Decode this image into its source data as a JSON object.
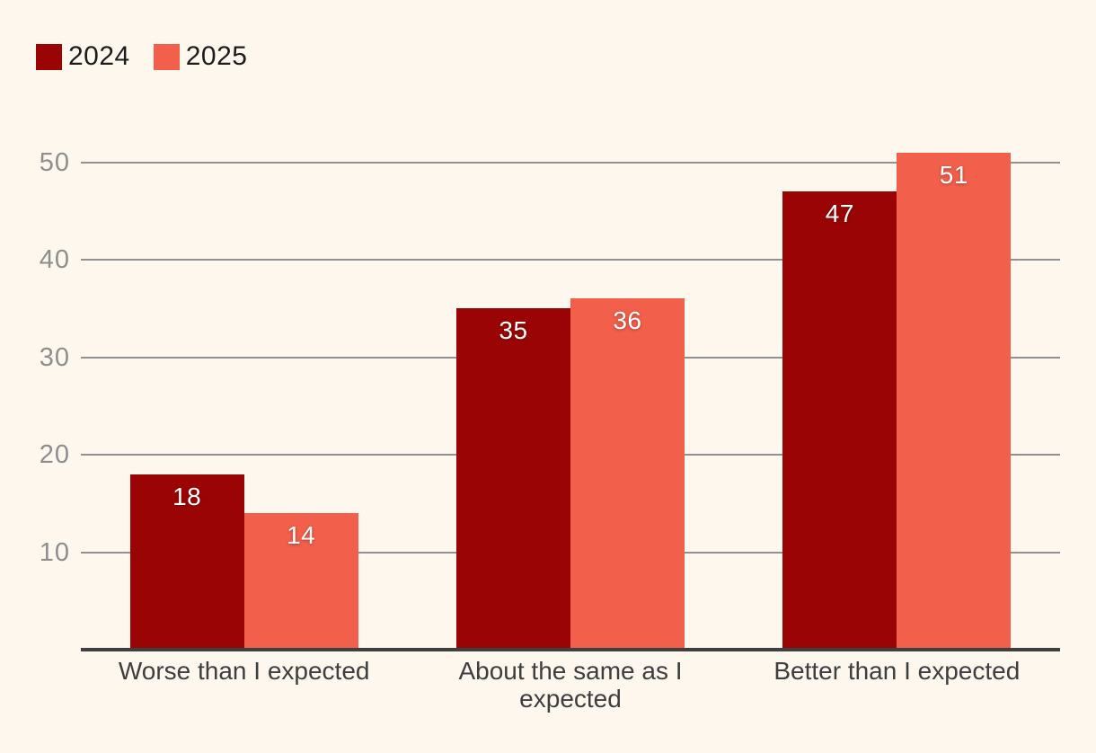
{
  "colors": {
    "background": "#FDF7EE",
    "gridline": "#919191",
    "axis": "#3F3F3F",
    "tick_label": "#8E8E8E",
    "category_label": "#3E3E3E",
    "value_label": "#FFFFFF",
    "legend_text": "#1C1C1C",
    "series_2024": "#9B0404",
    "series_2025": "#F25F4A"
  },
  "legend": {
    "items": [
      {
        "label": "2024",
        "color": "#9B0404"
      },
      {
        "label": "2025",
        "color": "#F25F4A"
      }
    ]
  },
  "chart_data": {
    "type": "bar",
    "categories": [
      "Worse than I expected",
      "About the same as I expected",
      "Better than I expected"
    ],
    "series": [
      {
        "name": "2024",
        "color": "#9B0404",
        "values": [
          18,
          35,
          47
        ]
      },
      {
        "name": "2025",
        "color": "#F25F4A",
        "values": [
          14,
          36,
          51
        ]
      }
    ],
    "title": "",
    "xlabel": "",
    "ylabel": "",
    "yticks": [
      10,
      20,
      30,
      40,
      50
    ],
    "ylim": [
      0,
      51.6
    ],
    "grid": true,
    "legend_position": "top-left",
    "value_labels": "inside-top-center"
  }
}
